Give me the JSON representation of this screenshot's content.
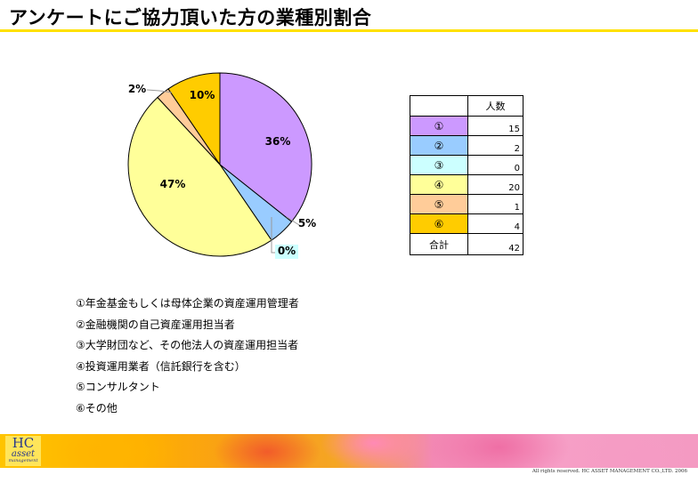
{
  "title": "アンケートにご協力頂いた方の業種別割合",
  "chart_data": {
    "type": "pie",
    "categories": [
      "①",
      "②",
      "③",
      "④",
      "⑤",
      "⑥"
    ],
    "values": [
      15,
      2,
      0,
      20,
      1,
      4
    ],
    "labels": [
      "36%",
      "5%",
      "0%",
      "47%",
      "2%",
      "10%"
    ],
    "colors": [
      "#cc99ff",
      "#99ccff",
      "#ccffff",
      "#ffff99",
      "#ffcc99",
      "#ffcc00"
    ],
    "start_angle_deg": 0,
    "direction": "clockwise",
    "legend": [
      "①年金基金もしくは母体企業の資産運用管理者",
      "②金融機関の自己資産運用担当者",
      "③大学財団など、その他法人の資産運用担当者",
      "④投資運用業者（信託銀行を含む）",
      "⑤コンサルタント",
      "⑥その他"
    ]
  },
  "table": {
    "header": "人数",
    "rows": [
      {
        "key": "①",
        "count": "15",
        "color": "#cc99ff"
      },
      {
        "key": "②",
        "count": "2",
        "color": "#99ccff"
      },
      {
        "key": "③",
        "count": "0",
        "color": "#ccffff"
      },
      {
        "key": "④",
        "count": "20",
        "color": "#ffff99"
      },
      {
        "key": "⑤",
        "count": "1",
        "color": "#ffcc99"
      },
      {
        "key": "⑥",
        "count": "4",
        "color": "#ffcc00"
      }
    ],
    "total_label": "合計",
    "total_value": "42"
  },
  "footer": {
    "logo_main": "HC",
    "logo_sub": "asset",
    "logo_small": "management",
    "copyright": "All rights reserved. HC ASSET MANAGEMENT CO.,LTD. 2006"
  }
}
